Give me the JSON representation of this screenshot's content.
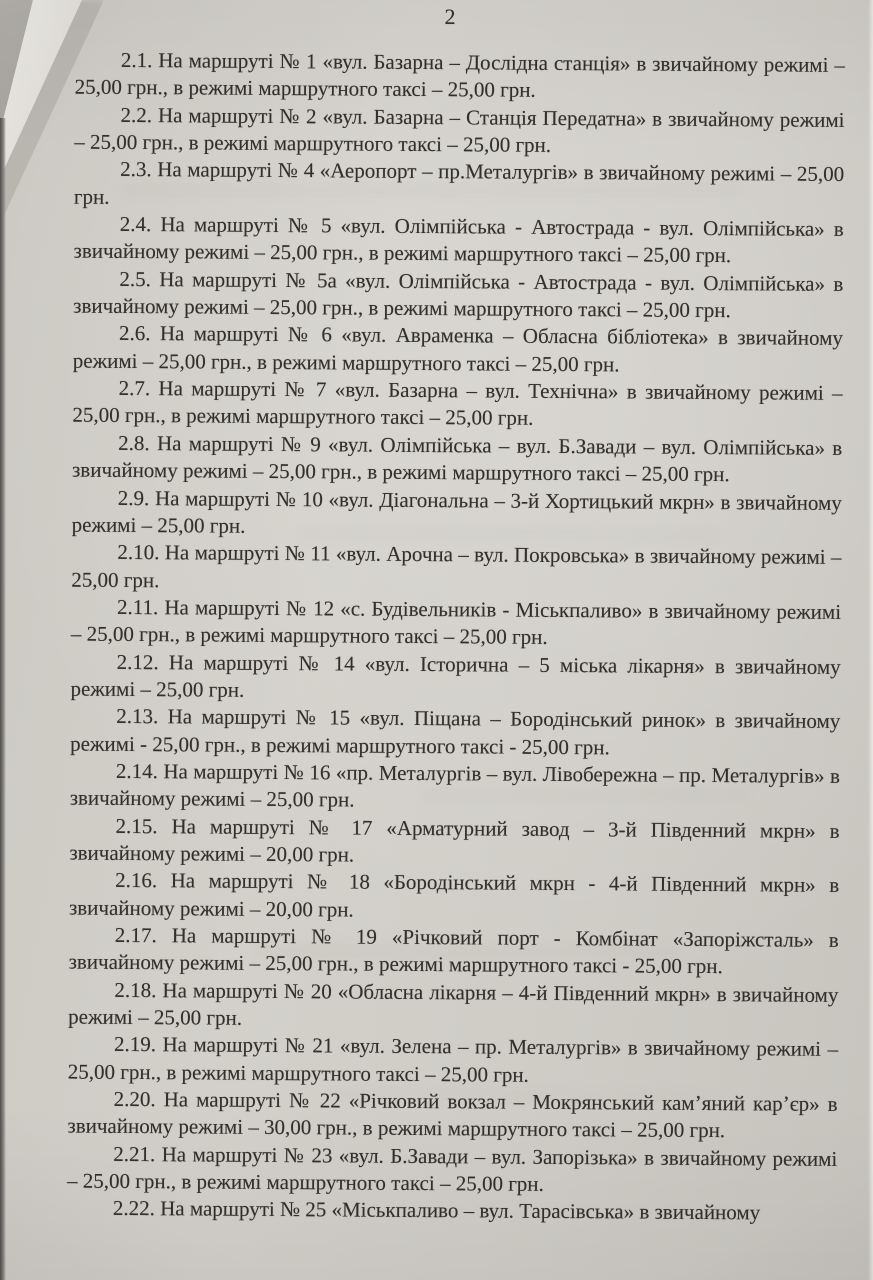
{
  "document": {
    "page_number": "2",
    "language": "uk",
    "paragraphs": [
      {
        "id": "2.1",
        "text": "2.1. На маршруті № 1 «вул. Базарна – Дослідна станція» в звичайному режимі – 25,00 грн., в режимі маршрутного таксі – 25,00 грн."
      },
      {
        "id": "2.2",
        "text": "2.2. На маршруті № 2 «вул. Базарна – Станція Передатна» в звичайному режимі – 25,00 грн., в режимі маршрутного таксі – 25,00 грн."
      },
      {
        "id": "2.3",
        "text": "2.3. На маршруті № 4 «Аеропорт – пр.Металургів» в звичайному режимі – 25,00 грн."
      },
      {
        "id": "2.4",
        "text": "2.4. На маршруті № 5 «вул. Олімпійська - Автострада - вул. Олімпійська» в звичайному режимі – 25,00 грн., в режимі маршрутного таксі – 25,00 грн."
      },
      {
        "id": "2.5",
        "text": "2.5. На маршруті № 5а «вул. Олімпійська - Автострада - вул. Олімпійська» в звичайному режимі – 25,00 грн., в режимі маршрутного таксі – 25,00 грн."
      },
      {
        "id": "2.6",
        "text": "2.6. На маршруті № 6 «вул. Авраменка – Обласна бібліотека» в звичайному режимі – 25,00 грн., в режимі маршрутного таксі – 25,00 грн."
      },
      {
        "id": "2.7",
        "text": "2.7. На маршруті № 7 «вул. Базарна – вул. Технічна» в звичайному режимі – 25,00 грн., в режимі маршрутного таксі – 25,00 грн."
      },
      {
        "id": "2.8",
        "text": "2.8. На маршруті № 9 «вул. Олімпійська – вул. Б.Завади – вул. Олімпійська» в звичайному режимі – 25,00 грн., в режимі маршрутного таксі – 25,00 грн."
      },
      {
        "id": "2.9",
        "text": "2.9. На маршруті № 10 «вул. Діагональна – 3-й Хортицький мкрн» в звичайному режимі – 25,00 грн."
      },
      {
        "id": "2.10",
        "text": "2.10. На маршруті № 11 «вул. Арочна – вул. Покровська» в звичайному режимі – 25,00 грн."
      },
      {
        "id": "2.11",
        "text": "2.11. На маршруті № 12 «с. Будівельників - Міськпаливо» в звичайному режимі – 25,00 грн., в режимі маршрутного таксі – 25,00 грн."
      },
      {
        "id": "2.12",
        "text": "2.12. На маршруті № 14 «вул. Історична – 5 міська лікарня» в звичайному режимі – 25,00 грн."
      },
      {
        "id": "2.13",
        "text": "2.13. На маршруті № 15 «вул. Піщана – Бородінський ринок» в звичайному режимі - 25,00 грн., в режимі маршрутного таксі - 25,00 грн."
      },
      {
        "id": "2.14",
        "text": "2.14. На маршруті № 16 «пр. Металургів – вул. Лівобережна – пр. Металургів» в звичайному режимі – 25,00 грн."
      },
      {
        "id": "2.15",
        "text": "2.15. На маршруті № 17 «Арматурний завод – 3-й Південний мкрн» в звичайному режимі – 20,00 грн."
      },
      {
        "id": "2.16",
        "text": "2.16. На маршруті № 18 «Бородінський мкрн - 4-й Південний мкрн» в звичайному режимі – 20,00 грн."
      },
      {
        "id": "2.17",
        "text": "2.17. На маршруті № 19 «Річковий порт - Комбінат «Запоріжсталь» в звичайному режимі – 25,00 грн., в режимі маршрутного таксі - 25,00 грн."
      },
      {
        "id": "2.18",
        "text": "2.18. На маршруті № 20 «Обласна лікарня – 4-й Південний мкрн» в звичайному режимі – 25,00 грн."
      },
      {
        "id": "2.19",
        "text": "2.19. На маршруті № 21 «вул. Зелена – пр. Металургів» в звичайному режимі – 25,00 грн., в режимі маршрутного таксі – 25,00 грн."
      },
      {
        "id": "2.20",
        "text": "2.20. На маршруті № 22 «Річковий вокзал – Мокрянський кам’яний кар’єр» в звичайному режимі – 30,00 грн., в режимі маршрутного таксі – 25,00 грн."
      },
      {
        "id": "2.21",
        "text": "2.21. На маршруті № 23 «вул. Б.Завади – вул. Запорізька» в звичайному режимі – 25,00 грн., в режимі маршрутного таксі – 25,00 грн."
      },
      {
        "id": "2.22",
        "text": "2.22. На маршруті № 25 «Міськпаливо – вул. Тарасівська» в звичайному"
      }
    ]
  },
  "style": {
    "paper_color": "#d0cdc7",
    "ink_color": "#33302b"
  }
}
